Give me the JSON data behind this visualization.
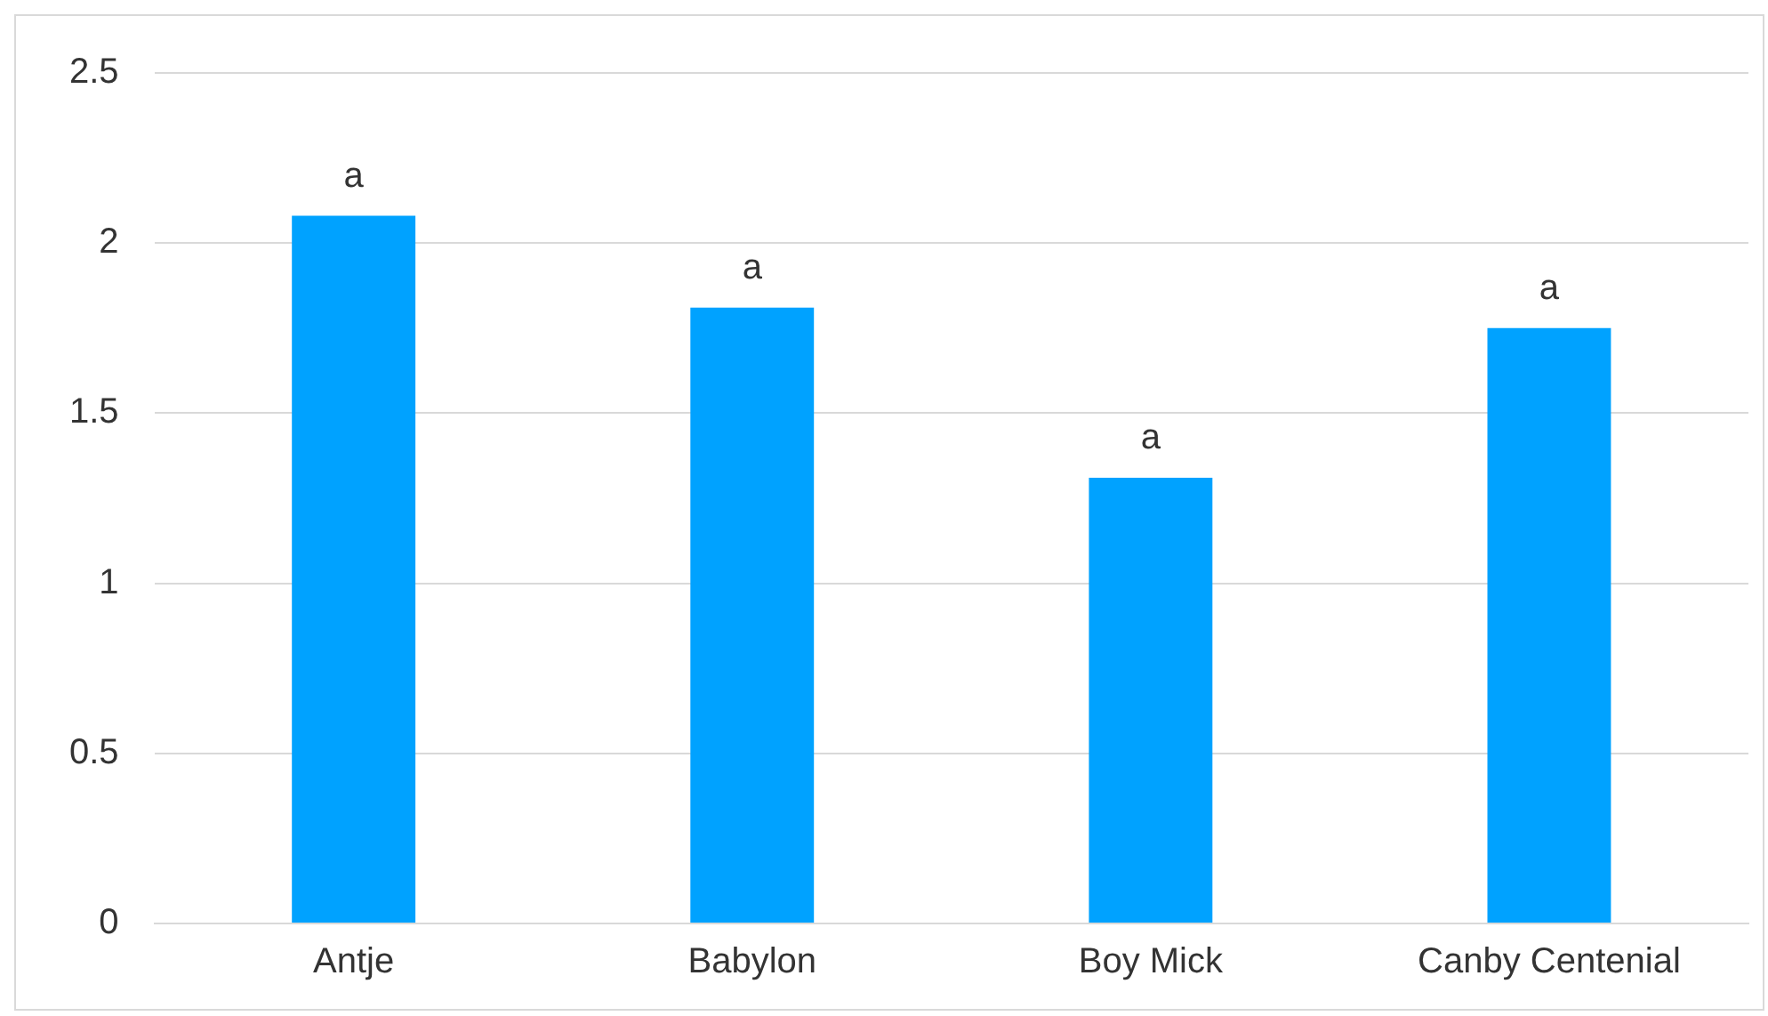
{
  "chart_data": {
    "type": "bar",
    "categories": [
      "Antje",
      "Babylon",
      "Boy Mick",
      "Canby Centenial"
    ],
    "values": [
      2.08,
      1.81,
      1.31,
      1.75
    ],
    "color": "#00a2ff",
    "ylim": [
      0,
      2.5
    ],
    "yticks": [
      0,
      0.5,
      1,
      1.5,
      2,
      2.5
    ],
    "grid": "y",
    "annotations": [
      {
        "text": "a",
        "x": "Antje",
        "y": 2.08
      },
      {
        "text": "a",
        "x": "Babylon",
        "y": 1.81
      },
      {
        "text": "a",
        "x": "Boy Mick",
        "y": 1.31
      },
      {
        "text": "a",
        "x": "Canby Centenial",
        "y": 1.75
      }
    ]
  }
}
